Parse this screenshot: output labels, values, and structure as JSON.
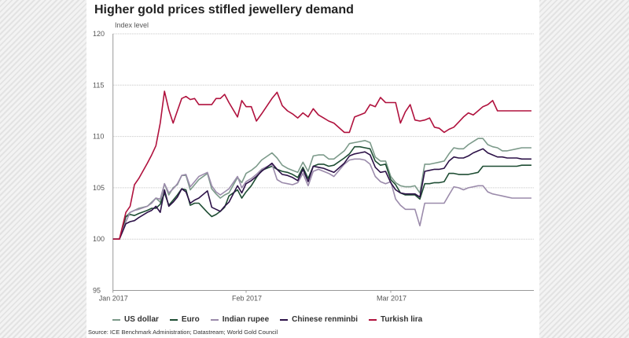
{
  "title": "Higher gold prices stifled jewellery demand",
  "source": "Source: ICE Benchmark Administration; Datastream; World Gold Council",
  "chart_data": {
    "type": "line",
    "title": "Higher gold prices stifled jewellery demand",
    "xlabel": "",
    "ylabel": "Index level",
    "ylim": [
      95,
      120
    ],
    "yticks": [
      95,
      100,
      105,
      110,
      115,
      120
    ],
    "xticks": [
      {
        "label": "Jan 2017",
        "day": 0
      },
      {
        "label": "Feb 2017",
        "day": 31
      },
      {
        "label": "Mar 2017",
        "day": 59
      }
    ],
    "xlim_days": [
      0,
      88.5
    ],
    "grid": true,
    "legend_position": "bottom",
    "x_days": [
      0,
      1.5,
      3,
      4,
      5,
      6,
      8,
      9,
      10,
      11,
      12,
      13,
      14,
      15,
      16,
      17,
      18,
      19,
      20,
      22,
      23,
      24,
      25,
      26,
      27,
      29,
      30,
      31,
      32,
      33,
      34,
      36,
      37,
      38,
      39,
      40,
      41,
      42,
      43,
      44,
      45,
      46,
      47,
      48,
      50,
      51,
      52,
      53,
      54,
      55,
      56,
      57,
      58,
      59,
      60,
      61,
      62,
      63,
      64,
      65,
      66,
      67,
      68,
      69,
      70,
      71,
      72,
      73,
      74,
      75,
      76,
      77,
      78,
      79,
      80,
      81,
      82,
      83,
      84,
      85,
      86,
      87,
      88
    ],
    "series": [
      {
        "name": "US dollar",
        "color": "#7c9a8a",
        "values": [
          100,
          100,
          102.2,
          102.6,
          102.8,
          103,
          103.2,
          103.6,
          104,
          103.6,
          105.4,
          104.3,
          105,
          105.3,
          106.2,
          106.2,
          104.8,
          105.3,
          105.8,
          106.4,
          104.9,
          104.4,
          104,
          104.3,
          104.5,
          106,
          105.5,
          106.4,
          106.7,
          107.1,
          107.7,
          108.4,
          107.9,
          107.2,
          106.9,
          106.7,
          106.5,
          107.5,
          106.6,
          108.1,
          108.2,
          108.2,
          107.8,
          107.8,
          108.6,
          109.3,
          109.4,
          109.5,
          109.6,
          109.4,
          108,
          107.6,
          107.6,
          106.1,
          105.5,
          105.2,
          105.1,
          105.1,
          105.2,
          104.5,
          107.3,
          107.3,
          107.4,
          107.5,
          107.6,
          108.3,
          108.9,
          108.8,
          108.8,
          109.2,
          109.5,
          109.8,
          109.8,
          109.2,
          109,
          108.9,
          108.6,
          108.6,
          108.7,
          108.8,
          108.9,
          108.9,
          108.9
        ]
      },
      {
        "name": "Euro",
        "color": "#1e4d33",
        "values": [
          100,
          100,
          102.2,
          102.4,
          102.3,
          102.5,
          102.8,
          103,
          103,
          103.4,
          104.5,
          103.3,
          103.8,
          104.3,
          104.9,
          104.8,
          103.3,
          103.5,
          103.5,
          102.6,
          102.2,
          102.4,
          102.7,
          103.1,
          104.2,
          104.8,
          104,
          104.6,
          105.2,
          106,
          106.7,
          107.1,
          106.8,
          106.6,
          106.5,
          106.3,
          106,
          107,
          105.9,
          107.1,
          107.3,
          107.3,
          107.1,
          107.2,
          107.9,
          108.3,
          109,
          109,
          108.9,
          108.8,
          107.6,
          107.2,
          107.3,
          105.8,
          105.3,
          104.5,
          104.3,
          104.3,
          104.3,
          103.9,
          105.4,
          105.4,
          105.5,
          105.5,
          105.6,
          106.4,
          106.4,
          106.3,
          106.3,
          106.3,
          106.4,
          106.5,
          107.1,
          107.1,
          107.1,
          107.1,
          107.1,
          107.1,
          107.1,
          107.1,
          107.2,
          107.2,
          107.2
        ]
      },
      {
        "name": "Indian rupee",
        "color": "#9b8bab",
        "values": [
          100,
          100,
          101.7,
          102.6,
          102.8,
          102.9,
          103.2,
          103.5,
          104,
          103.9,
          105.4,
          104.5,
          104.9,
          105.4,
          106.2,
          106.3,
          105.1,
          105.6,
          106.1,
          106.5,
          105.2,
          104.6,
          104.3,
          104.6,
          104.9,
          106.1,
          105,
          105.6,
          105.9,
          106.3,
          106.8,
          107.3,
          105.8,
          105.5,
          105.4,
          105.3,
          105.5,
          106.4,
          105.2,
          106.6,
          106.8,
          106.6,
          106.4,
          106.1,
          107.3,
          107.7,
          107.8,
          107.8,
          107.7,
          107.3,
          106.1,
          105.6,
          105.4,
          105.6,
          103.9,
          103.3,
          102.9,
          102.9,
          102.9,
          101.3,
          103.5,
          103.5,
          103.5,
          103.5,
          103.5,
          104.3,
          105.1,
          105,
          104.8,
          105,
          105.1,
          105.2,
          105.2,
          104.6,
          104.4,
          104.3,
          104.2,
          104.1,
          104,
          104,
          104,
          104,
          104
        ]
      },
      {
        "name": "Chinese renminbi",
        "color": "#2d1248",
        "values": [
          100,
          100,
          101.5,
          101.7,
          101.8,
          102.1,
          102.6,
          102.8,
          103.2,
          102.6,
          104.8,
          103.2,
          103.6,
          104.1,
          104.9,
          104.6,
          103.5,
          103.8,
          104,
          104.7,
          103.1,
          102.9,
          102.7,
          103.2,
          103.6,
          105.2,
          104.5,
          105.4,
          105.7,
          106.1,
          106.6,
          107.4,
          106.8,
          106.3,
          106.2,
          106,
          105.7,
          106.8,
          105.6,
          107.1,
          107,
          106.9,
          106.7,
          106.5,
          107.4,
          108.1,
          108.3,
          108.4,
          108.5,
          108.2,
          107,
          106.5,
          106.6,
          105.5,
          104.8,
          104.5,
          104.4,
          104.4,
          104.4,
          104.1,
          106.6,
          106.7,
          106.8,
          106.8,
          106.9,
          107.6,
          108,
          107.9,
          107.9,
          108.1,
          108.4,
          108.6,
          108.8,
          108.4,
          108.2,
          108,
          108,
          107.9,
          107.9,
          107.9,
          107.8,
          107.8,
          107.8
        ]
      },
      {
        "name": "Turkish lira",
        "color": "#b0113d",
        "values": [
          100,
          100,
          102.6,
          103.2,
          105.3,
          105.9,
          107.4,
          108.2,
          109.1,
          111.3,
          114.4,
          112.6,
          111.3,
          112.5,
          113.7,
          113.9,
          113.6,
          113.7,
          113.1,
          113.1,
          113.1,
          113.7,
          113.7,
          114.1,
          113.3,
          111.9,
          113.5,
          112.9,
          112.9,
          111.5,
          112.2,
          113.7,
          114.3,
          113,
          112.5,
          112.2,
          111.8,
          112.3,
          111.9,
          112.7,
          112.1,
          111.8,
          111.5,
          111.3,
          110.4,
          110.4,
          111.9,
          112.1,
          112.3,
          113.1,
          112.9,
          113.8,
          113.3,
          113.3,
          113.3,
          111.3,
          112.4,
          113.1,
          111.6,
          111.5,
          111.6,
          111.8,
          110.9,
          110.8,
          110.4,
          110.7,
          110.9,
          111.4,
          111.9,
          112.3,
          112.1,
          112.5,
          112.9,
          113.1,
          113.5,
          112.5,
          112.5,
          112.5,
          112.5,
          112.5,
          112.5,
          112.5,
          112.5
        ]
      }
    ]
  }
}
